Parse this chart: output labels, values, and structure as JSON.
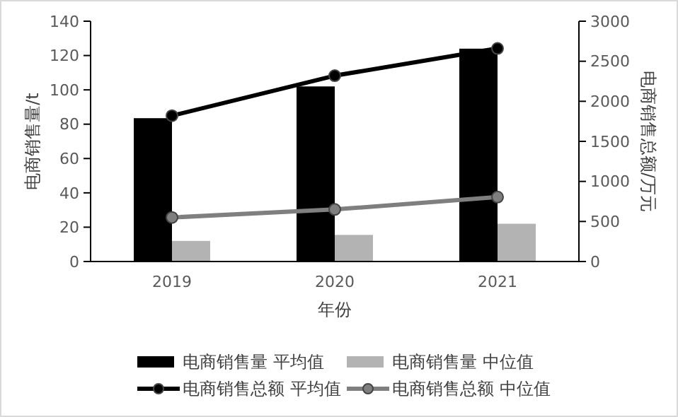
{
  "chart_data": {
    "type": "bar",
    "xlabel": "年份",
    "ylabel": "电商销售量/t",
    "y2label": "电商销售总额/万元",
    "categories": [
      "2019",
      "2020",
      "2021"
    ],
    "series": [
      {
        "name": "电商销售量 平均值",
        "color": "#000000",
        "values": [
          83.5,
          102,
          124
        ]
      },
      {
        "name": "电商销售量 中位值",
        "color": "#b3b3b3",
        "values": [
          12,
          15.5,
          22
        ]
      },
      {
        "name": "电商销售总额 平均值",
        "type": "line",
        "axis": "y2",
        "color": "#000000",
        "values": [
          1820,
          2320,
          2660
        ]
      },
      {
        "name": "电商销售总额 中位值",
        "type": "line",
        "axis": "y2",
        "color": "#7f7f7f",
        "values": [
          550,
          650,
          805
        ]
      }
    ],
    "ylim": [
      0,
      140
    ],
    "yticks": [
      0,
      20,
      40,
      60,
      80,
      100,
      120,
      140
    ],
    "y2lim": [
      0,
      3000
    ],
    "y2ticks": [
      0,
      500,
      1000,
      1500,
      2000,
      2500,
      3000
    ],
    "marker": "circle",
    "legend": "bottom",
    "grid": false
  }
}
